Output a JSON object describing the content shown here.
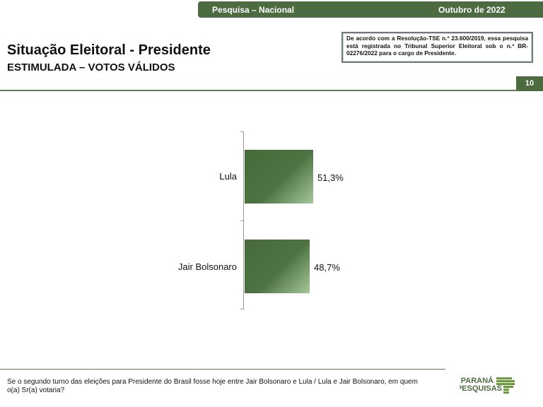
{
  "header": {
    "left": "Pesquisa – Nacional",
    "right": "Outubro de 2022"
  },
  "title": "Situação Eleitoral - Presidente",
  "subtitle": "ESTIMULADA – VOTOS VÁLIDOS",
  "tse_notice": {
    "pre": "De acordo com a Resolução-TSE n.º 23.600/2019, essa pesquisa está registrada no Tribunal Superior Eleitoral sob o n.º ",
    "reg": "BR-02276/2022",
    "post": " para o cargo de Presidente."
  },
  "page_number": "10",
  "chart_data": {
    "type": "bar",
    "orientation": "horizontal",
    "categories": [
      "Lula",
      "Jair Bolsonaro"
    ],
    "values": [
      51.3,
      48.7
    ],
    "labels": [
      "51,3%",
      "48,7%"
    ],
    "xlim": [
      0,
      100
    ],
    "color": "#4c6b40"
  },
  "footer": {
    "question": "Se o segundo turno das eleições para Presidente do Brasil fosse hoje entre Jair Bolsonaro e Lula / Lula e Jair Bolsonaro, em quem o(a) Sr(a) votaria?"
  },
  "logo": {
    "line1": "PARANÁ",
    "line2": "PESQUISAS"
  }
}
